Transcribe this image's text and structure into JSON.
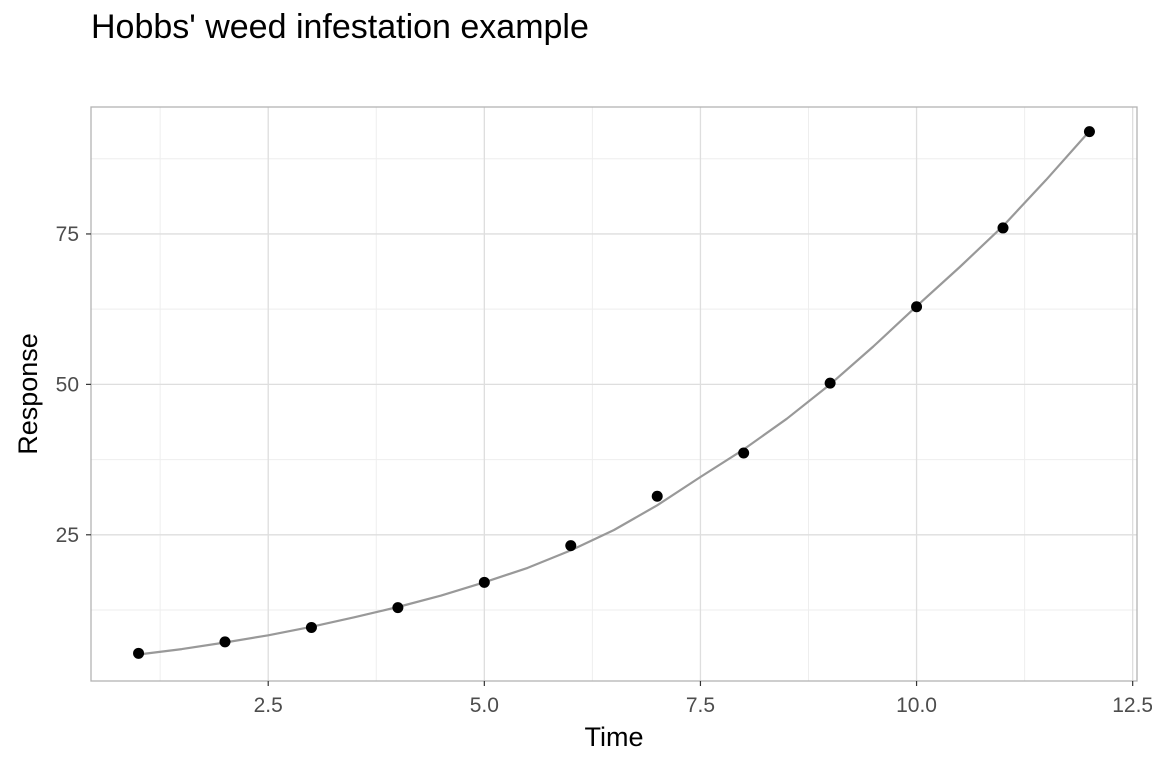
{
  "chart_data": {
    "type": "scatter",
    "title": "Hobbs' weed infestation example",
    "xlabel": "Time",
    "ylabel": "Response",
    "xlim": [
      0.45,
      12.55
    ],
    "ylim": [
      0.7,
      96.1
    ],
    "x_ticks": [
      2.5,
      5.0,
      7.5,
      10.0,
      12.5
    ],
    "x_tick_labels": [
      "2.5",
      "5.0",
      "7.5",
      "10.0",
      "12.5"
    ],
    "y_ticks": [
      25,
      50,
      75
    ],
    "y_tick_labels": [
      "25",
      "50",
      "75"
    ],
    "grid": true,
    "legend": "none",
    "series": [
      {
        "kind": "points",
        "x": [
          1,
          2,
          3,
          4,
          5,
          6,
          7,
          8,
          9,
          10,
          11,
          12
        ],
        "y": [
          5.3,
          7.2,
          9.6,
          12.9,
          17.1,
          23.2,
          31.4,
          38.6,
          50.2,
          62.9,
          76.0,
          92.0
        ],
        "color": "#000000"
      },
      {
        "kind": "fitted-curve",
        "x": [
          1,
          1.5,
          2,
          2.5,
          3,
          3.5,
          4,
          4.5,
          5,
          5.5,
          6,
          6.5,
          7,
          7.5,
          8,
          8.5,
          9,
          9.5,
          10,
          10.5,
          11,
          11.5,
          12
        ],
        "y": [
          5.1,
          6.0,
          7.1,
          8.3,
          9.7,
          11.3,
          13.0,
          14.9,
          17.1,
          19.5,
          22.4,
          25.8,
          29.9,
          34.6,
          39.2,
          44.3,
          50.0,
          56.3,
          63.0,
          69.5,
          76.3,
          84.0,
          92.1
        ],
        "color": "#999999"
      }
    ],
    "colors": {
      "panel_border": "#b3b3b3",
      "grid_major": "#dedede",
      "grid_minor": "#eeeeee",
      "tick_label": "#4d4d4d"
    }
  }
}
